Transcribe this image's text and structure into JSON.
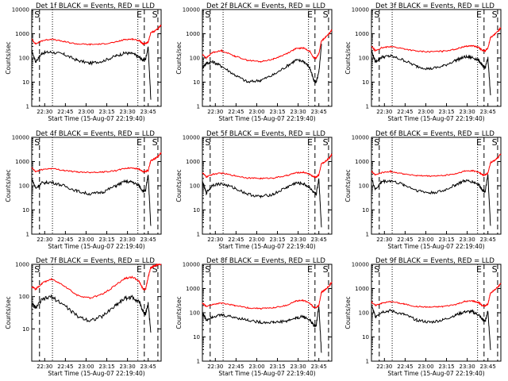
{
  "chart_data": [
    {
      "type": "line",
      "title": "Det 1f  BLACK = Events, RED = LLD",
      "xlabel": "Start Time (15-Aug-07 22:19:40)",
      "ylabel": "Counts/sec",
      "x_ticks": [
        "22:30",
        "22:45",
        "23:00",
        "23:15",
        "23:30",
        "23:45"
      ],
      "y_ticks": [
        "1",
        "10",
        "100",
        "1000",
        "10000"
      ],
      "yscale": "log",
      "ylim": [
        1,
        10000
      ],
      "markers": [
        "S",
        "E",
        "S"
      ],
      "series": [
        {
          "color": "#000000",
          "x": [
            0,
            0.03,
            0.08,
            0.15,
            0.25,
            0.35,
            0.45,
            0.55,
            0.65,
            0.72,
            0.78,
            0.83,
            0.86,
            0.88,
            0.9,
            0.92,
            0.95,
            0.98,
            1.0
          ],
          "values": [
            200,
            70,
            160,
            175,
            140,
            80,
            60,
            75,
            120,
            160,
            150,
            110,
            80,
            90,
            280,
            2,
            null,
            null,
            null
          ]
        },
        {
          "color": "#ff0000",
          "x": [
            0,
            0.03,
            0.08,
            0.15,
            0.25,
            0.35,
            0.45,
            0.55,
            0.65,
            0.72,
            0.78,
            0.83,
            0.86,
            0.88,
            0.9,
            0.92,
            0.95,
            0.98,
            1.0
          ],
          "values": [
            600,
            380,
            520,
            600,
            470,
            380,
            360,
            380,
            450,
            580,
            600,
            520,
            380,
            400,
            450,
            1100,
            1300,
            1700,
            2200
          ]
        }
      ]
    },
    {
      "type": "line",
      "title": "Det 2f  BLACK = Events, RED = LLD",
      "xlabel": "Start Time (15-Aug-07 22:19:40)",
      "ylabel": "Counts/sec",
      "x_ticks": [
        "22:30",
        "22:45",
        "23:00",
        "23:15",
        "23:30",
        "23:45"
      ],
      "y_ticks": [
        "1",
        "10",
        "100",
        "1000",
        "10000"
      ],
      "yscale": "log",
      "ylim": [
        1,
        10000
      ],
      "markers": [
        "S",
        "E",
        "S"
      ],
      "series": [
        {
          "color": "#000000",
          "x": [
            0,
            0.03,
            0.08,
            0.15,
            0.25,
            0.35,
            0.45,
            0.55,
            0.65,
            0.72,
            0.78,
            0.83,
            0.86,
            0.88,
            0.9,
            0.92,
            0.95,
            0.98,
            1.0
          ],
          "values": [
            40,
            60,
            70,
            45,
            20,
            10,
            12,
            20,
            45,
            80,
            75,
            40,
            12,
            10,
            25,
            350,
            null,
            null,
            null
          ]
        },
        {
          "color": "#ff0000",
          "x": [
            0,
            0.03,
            0.08,
            0.15,
            0.25,
            0.35,
            0.45,
            0.55,
            0.65,
            0.72,
            0.78,
            0.83,
            0.86,
            0.88,
            0.9,
            0.92,
            0.95,
            0.98,
            1.0
          ],
          "values": [
            140,
            100,
            170,
            200,
            120,
            80,
            70,
            90,
            150,
            240,
            260,
            190,
            100,
            100,
            150,
            500,
            700,
            1000,
            1500
          ]
        }
      ]
    },
    {
      "type": "line",
      "title": "Det 3f  BLACK = Events, RED = LLD",
      "xlabel": "Start Time (15-Aug-07 22:19:40)",
      "ylabel": "Counts/sec",
      "x_ticks": [
        "22:30",
        "22:45",
        "23:00",
        "23:15",
        "23:30",
        "23:45"
      ],
      "y_ticks": [
        "1",
        "10",
        "100",
        "1000",
        "10000"
      ],
      "yscale": "log",
      "ylim": [
        1,
        10000
      ],
      "markers": [
        "S",
        "E",
        "S"
      ],
      "series": [
        {
          "color": "#000000",
          "x": [
            0,
            0.03,
            0.08,
            0.15,
            0.25,
            0.35,
            0.45,
            0.55,
            0.65,
            0.72,
            0.78,
            0.83,
            0.86,
            0.88,
            0.9,
            0.92,
            0.95,
            0.98,
            1.0
          ],
          "values": [
            200,
            70,
            110,
            120,
            80,
            45,
            35,
            45,
            80,
            110,
            105,
            80,
            45,
            40,
            100,
            3,
            null,
            null,
            null
          ]
        },
        {
          "color": "#ff0000",
          "x": [
            0,
            0.03,
            0.08,
            0.15,
            0.25,
            0.35,
            0.45,
            0.55,
            0.65,
            0.72,
            0.78,
            0.83,
            0.86,
            0.88,
            0.9,
            0.92,
            0.95,
            0.98,
            1.0
          ],
          "values": [
            300,
            200,
            260,
            300,
            240,
            190,
            180,
            190,
            230,
            300,
            320,
            270,
            200,
            200,
            250,
            700,
            900,
            1300,
            1800
          ]
        }
      ]
    },
    {
      "type": "line",
      "title": "Det 4f  BLACK = Events, RED = LLD",
      "xlabel": "Start Time (15-Aug-07 22:19:40)",
      "ylabel": "Counts/sec",
      "x_ticks": [
        "22:30",
        "22:45",
        "23:00",
        "23:15",
        "23:30",
        "23:45"
      ],
      "y_ticks": [
        "1",
        "10",
        "100",
        "1000",
        "10000"
      ],
      "yscale": "log",
      "ylim": [
        1,
        10000
      ],
      "markers": [
        "S",
        "E",
        "S"
      ],
      "series": [
        {
          "color": "#000000",
          "x": [
            0,
            0.03,
            0.08,
            0.15,
            0.25,
            0.35,
            0.45,
            0.55,
            0.65,
            0.72,
            0.78,
            0.83,
            0.86,
            0.88,
            0.9,
            0.92,
            0.95,
            0.98,
            1.0
          ],
          "values": [
            200,
            80,
            130,
            140,
            100,
            60,
            45,
            55,
            100,
            150,
            140,
            100,
            60,
            60,
            300,
            2,
            null,
            null,
            null
          ]
        },
        {
          "color": "#ff0000",
          "x": [
            0,
            0.03,
            0.08,
            0.15,
            0.25,
            0.35,
            0.45,
            0.55,
            0.65,
            0.72,
            0.78,
            0.83,
            0.86,
            0.88,
            0.9,
            0.92,
            0.95,
            0.98,
            1.0
          ],
          "values": [
            550,
            380,
            470,
            520,
            430,
            370,
            360,
            370,
            420,
            520,
            550,
            480,
            380,
            390,
            420,
            1100,
            1300,
            1700,
            2300
          ]
        }
      ]
    },
    {
      "type": "line",
      "title": "Det 5f  BLACK = Events, RED = LLD",
      "xlabel": "Start Time (15-Aug-07 22:19:40)",
      "ylabel": "Counts/sec",
      "x_ticks": [
        "22:30",
        "22:45",
        "23:00",
        "23:15",
        "23:30",
        "23:45"
      ],
      "y_ticks": [
        "1",
        "10",
        "100",
        "1000",
        "10000"
      ],
      "yscale": "log",
      "ylim": [
        1,
        10000
      ],
      "markers": [
        "S",
        "E",
        "S"
      ],
      "series": [
        {
          "color": "#000000",
          "x": [
            0,
            0.03,
            0.08,
            0.15,
            0.25,
            0.35,
            0.45,
            0.55,
            0.65,
            0.72,
            0.78,
            0.83,
            0.86,
            0.88,
            0.9,
            0.92,
            0.95,
            0.98,
            1.0
          ],
          "values": [
            150,
            50,
            110,
            120,
            80,
            45,
            35,
            45,
            85,
            130,
            120,
            85,
            50,
            45,
            200,
            2,
            null,
            null,
            null
          ]
        },
        {
          "color": "#ff0000",
          "x": [
            0,
            0.03,
            0.08,
            0.15,
            0.25,
            0.35,
            0.45,
            0.55,
            0.65,
            0.72,
            0.78,
            0.83,
            0.86,
            0.88,
            0.9,
            0.92,
            0.95,
            0.98,
            1.0
          ],
          "values": [
            350,
            230,
            300,
            330,
            260,
            210,
            200,
            210,
            260,
            340,
            360,
            300,
            230,
            230,
            280,
            800,
            1000,
            1400,
            2000
          ]
        }
      ]
    },
    {
      "type": "line",
      "title": "Det 6f  BLACK = Events, RED = LLD",
      "xlabel": "Start Time (15-Aug-07 22:19:40)",
      "ylabel": "Counts/sec",
      "x_ticks": [
        "22:30",
        "22:45",
        "23:00",
        "23:15",
        "23:30",
        "23:45"
      ],
      "y_ticks": [
        "1",
        "10",
        "100",
        "1000",
        "10000"
      ],
      "yscale": "log",
      "ylim": [
        1,
        10000
      ],
      "markers": [
        "S",
        "E",
        "S"
      ],
      "series": [
        {
          "color": "#000000",
          "x": [
            0,
            0.03,
            0.08,
            0.15,
            0.25,
            0.35,
            0.45,
            0.55,
            0.65,
            0.72,
            0.78,
            0.83,
            0.86,
            0.88,
            0.9,
            0.92,
            0.95,
            0.98,
            1.0
          ],
          "values": [
            200,
            70,
            150,
            160,
            110,
            65,
            50,
            60,
            110,
            160,
            150,
            110,
            65,
            60,
            280,
            2,
            null,
            null,
            null
          ]
        },
        {
          "color": "#ff0000",
          "x": [
            0,
            0.03,
            0.08,
            0.15,
            0.25,
            0.35,
            0.45,
            0.55,
            0.65,
            0.72,
            0.78,
            0.83,
            0.86,
            0.88,
            0.9,
            0.92,
            0.95,
            0.98,
            1.0
          ],
          "values": [
            400,
            280,
            350,
            390,
            310,
            260,
            250,
            260,
            310,
            400,
            420,
            360,
            280,
            280,
            330,
            900,
            1100,
            1500,
            2100
          ]
        }
      ]
    },
    {
      "type": "line",
      "title": "Det 7f  BLACK = Events, RED = LLD",
      "xlabel": "Start Time (15-Aug-07 22:19:40)",
      "ylabel": "Counts/sec",
      "x_ticks": [
        "22:30",
        "22:45",
        "23:00",
        "23:15",
        "23:30",
        "23:45"
      ],
      "y_ticks": [
        "10",
        "100",
        "1000"
      ],
      "yscale": "log",
      "ylim": [
        1,
        1000
      ],
      "markers": [
        "S",
        "E",
        "S"
      ],
      "series": [
        {
          "color": "#000000",
          "x": [
            0,
            0.03,
            0.08,
            0.15,
            0.25,
            0.35,
            0.45,
            0.55,
            0.65,
            0.72,
            0.78,
            0.83,
            0.86,
            0.88,
            0.9,
            0.92,
            0.95,
            0.98,
            1.0
          ],
          "values": [
            60,
            45,
            80,
            100,
            55,
            25,
            18,
            25,
            55,
            90,
            95,
            70,
            35,
            30,
            60,
            8,
            null,
            null,
            null
          ]
        },
        {
          "color": "#ff0000",
          "x": [
            0,
            0.03,
            0.08,
            0.15,
            0.25,
            0.35,
            0.45,
            0.55,
            0.65,
            0.72,
            0.78,
            0.83,
            0.86,
            0.88,
            0.9,
            0.92,
            0.95,
            0.98,
            1.0
          ],
          "values": [
            200,
            170,
            260,
            350,
            220,
            110,
            90,
            120,
            230,
            370,
            400,
            300,
            170,
            170,
            400,
            800,
            900,
            1000,
            1000
          ]
        }
      ]
    },
    {
      "type": "line",
      "title": "Det 8f  BLACK = Events, RED = LLD",
      "xlabel": "Start Time (15-Aug-07 22:19:40)",
      "ylabel": "Counts/sec",
      "x_ticks": [
        "22:30",
        "22:45",
        "23:00",
        "23:15",
        "23:30",
        "23:45"
      ],
      "y_ticks": [
        "1",
        "10",
        "100",
        "1000",
        "10000"
      ],
      "yscale": "log",
      "ylim": [
        1,
        10000
      ],
      "markers": [
        "S",
        "E",
        "S"
      ],
      "series": [
        {
          "color": "#000000",
          "x": [
            0,
            0.03,
            0.08,
            0.15,
            0.25,
            0.35,
            0.45,
            0.55,
            0.65,
            0.72,
            0.78,
            0.83,
            0.86,
            0.88,
            0.9,
            0.92,
            0.95,
            0.98,
            1.0
          ],
          "values": [
            100,
            50,
            70,
            80,
            65,
            50,
            40,
            40,
            45,
            60,
            70,
            50,
            30,
            30,
            200,
            2,
            null,
            null,
            null
          ]
        },
        {
          "color": "#ff0000",
          "x": [
            0,
            0.03,
            0.08,
            0.15,
            0.25,
            0.35,
            0.45,
            0.55,
            0.65,
            0.72,
            0.78,
            0.83,
            0.86,
            0.88,
            0.9,
            0.92,
            0.95,
            0.98,
            1.0
          ],
          "values": [
            250,
            180,
            220,
            250,
            200,
            160,
            150,
            160,
            200,
            300,
            330,
            250,
            170,
            160,
            200,
            700,
            900,
            1300,
            1800
          ]
        }
      ]
    },
    {
      "type": "line",
      "title": "Det 9f  BLACK = Events, RED = LLD",
      "xlabel": "Start Time (15-Aug-07 22:19:40)",
      "ylabel": "Counts/sec",
      "x_ticks": [
        "22:30",
        "22:45",
        "23:00",
        "23:15",
        "23:30",
        "23:45"
      ],
      "y_ticks": [
        "1",
        "10",
        "100",
        "1000",
        "10000"
      ],
      "yscale": "log",
      "ylim": [
        1,
        10000
      ],
      "markers": [
        "S",
        "E",
        "S"
      ],
      "series": [
        {
          "color": "#000000",
          "x": [
            0,
            0.03,
            0.08,
            0.15,
            0.25,
            0.35,
            0.45,
            0.55,
            0.65,
            0.72,
            0.78,
            0.83,
            0.86,
            0.88,
            0.9,
            0.92,
            0.95,
            0.98,
            1.0
          ],
          "values": [
            200,
            70,
            110,
            120,
            85,
            50,
            40,
            50,
            80,
            110,
            110,
            80,
            50,
            45,
            120,
            3,
            null,
            null,
            null
          ]
        },
        {
          "color": "#ff0000",
          "x": [
            0,
            0.03,
            0.08,
            0.15,
            0.25,
            0.35,
            0.45,
            0.55,
            0.65,
            0.72,
            0.78,
            0.83,
            0.86,
            0.88,
            0.9,
            0.92,
            0.95,
            0.98,
            1.0
          ],
          "values": [
            280,
            200,
            250,
            290,
            230,
            180,
            170,
            180,
            220,
            290,
            310,
            260,
            190,
            190,
            230,
            650,
            850,
            1200,
            1700
          ]
        }
      ]
    }
  ]
}
